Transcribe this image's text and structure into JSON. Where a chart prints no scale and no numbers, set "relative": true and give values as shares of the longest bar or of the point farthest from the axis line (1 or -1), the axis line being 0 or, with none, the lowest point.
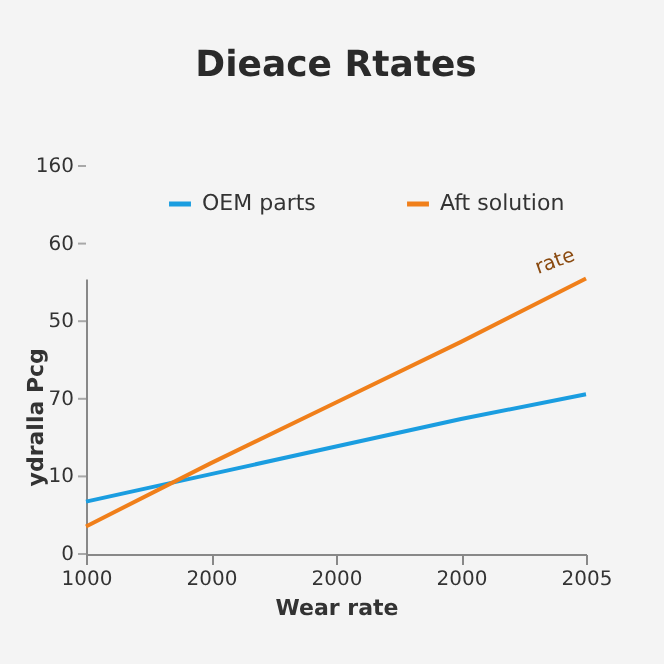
{
  "chart_data": {
    "type": "line",
    "title": "Dieace Rtates",
    "xlabel": "Wear rate",
    "ylabel": "ydralla Pcg",
    "categories": [
      "1000",
      "2000",
      "2000",
      "2000",
      "2005"
    ],
    "series": [
      {
        "name": "OEM parts",
        "color": "#1a9de0",
        "values": [
          0.19,
          0.29,
          0.39,
          0.49,
          0.58
        ]
      },
      {
        "name": "Aft solution",
        "color": "#f07f1a",
        "values": [
          0.1,
          0.33,
          0.55,
          0.77,
          1
        ]
      }
    ],
    "relative": true,
    "annotations": [
      "160",
      "60",
      "50",
      "70",
      "10",
      "0",
      "rate"
    ],
    "legend": "top",
    "grid": false,
    "marker": "none",
    "line_style": "solid"
  }
}
